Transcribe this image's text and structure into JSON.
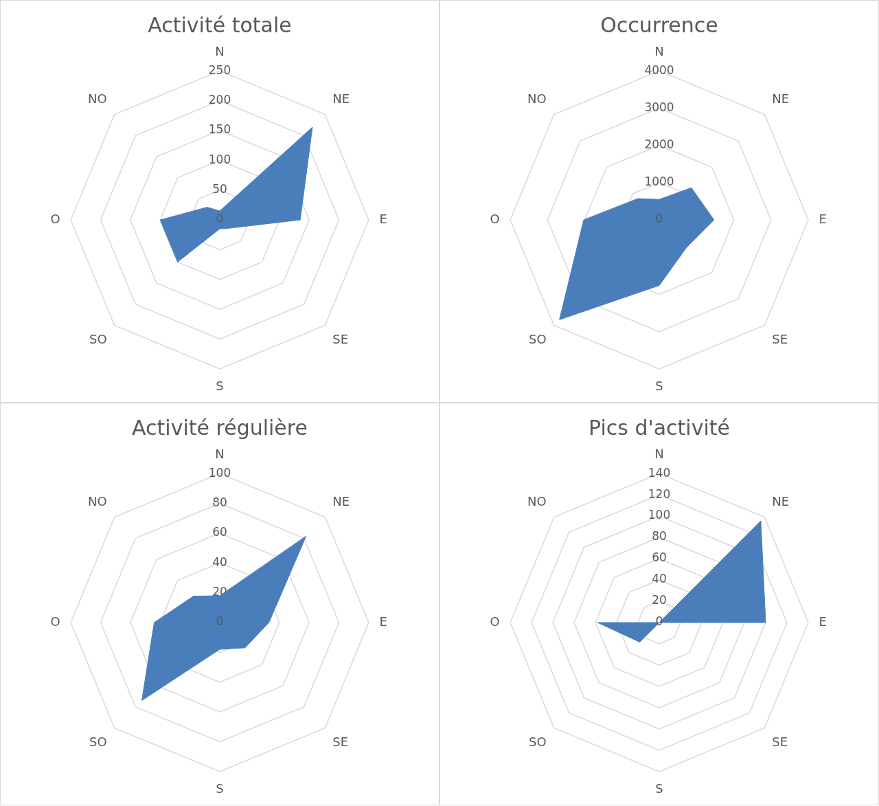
{
  "chart_data": [
    {
      "type": "radar",
      "title": "Activité totale",
      "categories": [
        "N",
        "NE",
        "E",
        "SE",
        "S",
        "SO",
        "O",
        "NO"
      ],
      "ylim": [
        0,
        250
      ],
      "yticks": [
        0,
        50,
        100,
        150,
        200,
        250
      ],
      "grid": true,
      "marker": "none",
      "legend": false,
      "series": [
        {
          "color": "#4a7ebb",
          "values": [
            15,
            220,
            135,
            20,
            15,
            100,
            100,
            30
          ]
        }
      ]
    },
    {
      "type": "radar",
      "title": "Occurrence",
      "categories": [
        "N",
        "NE",
        "E",
        "SE",
        "S",
        "SO",
        "O",
        "NO"
      ],
      "ylim": [
        0,
        4000
      ],
      "yticks": [
        0,
        1000,
        2000,
        3000,
        4000
      ],
      "grid": true,
      "marker": "none",
      "legend": false,
      "series": [
        {
          "color": "#4a7ebb",
          "values": [
            550,
            1220,
            1470,
            1040,
            1760,
            3790,
            2030,
            810
          ]
        }
      ]
    },
    {
      "type": "radar",
      "title": "Activité régulière",
      "categories": [
        "N",
        "NE",
        "E",
        "SE",
        "S",
        "SO",
        "O",
        "NO"
      ],
      "ylim": [
        0,
        100
      ],
      "yticks": [
        0,
        20,
        40,
        60,
        80,
        100
      ],
      "grid": true,
      "marker": "none",
      "legend": false,
      "series": [
        {
          "color": "#4a7ebb",
          "values": [
            18,
            82,
            33,
            24,
            18,
            74,
            44,
            25
          ]
        }
      ]
    },
    {
      "type": "radar",
      "title": "Pics d'activité",
      "categories": [
        "N",
        "NE",
        "E",
        "SE",
        "S",
        "SO",
        "O",
        "NO"
      ],
      "ylim": [
        0,
        140
      ],
      "yticks": [
        0,
        20,
        40,
        60,
        80,
        100,
        120,
        140
      ],
      "grid": true,
      "marker": "none",
      "legend": false,
      "series": [
        {
          "color": "#4a7ebb",
          "values": [
            0,
            135,
            100,
            0,
            0,
            26,
            58,
            0
          ]
        }
      ]
    }
  ]
}
